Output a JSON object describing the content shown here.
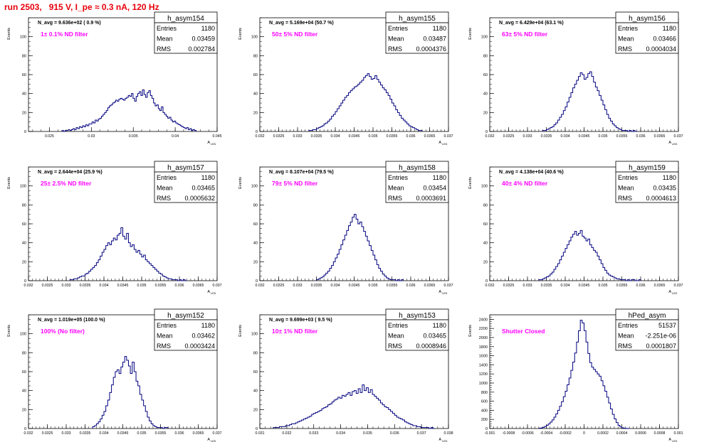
{
  "run_title": "run 2503,   915 V, I_pe ≈ 0.3 nA, 120 Hz",
  "colors": {
    "title": "#e8000b",
    "histogram": "#00007f",
    "annotation": "#ff00ff",
    "axes": "#000000"
  },
  "stat_labels": {
    "entries": "Entries",
    "mean": "Mean",
    "rms": "RMS"
  },
  "chart_data": [
    {
      "type": "histogram",
      "name": "h_asym154",
      "ylabel": "Events",
      "xlabel": "A",
      "xlabel_sub": "LED",
      "xlim": [
        0.0225,
        0.045
      ],
      "ylim": [
        0,
        120
      ],
      "yticks": [
        0,
        20,
        40,
        60,
        80,
        100
      ],
      "xticks": [
        0.025,
        0.03,
        0.035,
        0.04,
        0.045
      ],
      "xtick_labels": [
        "0.025",
        "0.03",
        "0.035",
        "0.04",
        "0.045"
      ],
      "navg": "N_avg = 9.636e+02 ( 0.9 %)",
      "annotation": "1± 0.1% ND filter",
      "entries": "1180",
      "mean": "0.03459",
      "rms": "0.002784",
      "bins_range": [
        0.0265,
        0.0425
      ],
      "counts": [
        1,
        0,
        1,
        1,
        2,
        1,
        2,
        3,
        2,
        4,
        3,
        5,
        4,
        6,
        5,
        7,
        6,
        8,
        8,
        10,
        9,
        12,
        11,
        13,
        14,
        16,
        18,
        20,
        22,
        25,
        27,
        28,
        30,
        31,
        33,
        32,
        34,
        35,
        34,
        33,
        35,
        36,
        38,
        37,
        40,
        35,
        32,
        37,
        40,
        42,
        38,
        44,
        39,
        36,
        41,
        43,
        38,
        35,
        30,
        27,
        28,
        24,
        22,
        26,
        20,
        18,
        16,
        14,
        15,
        12,
        10,
        11,
        9,
        8,
        7,
        6,
        5,
        4,
        3,
        4,
        2,
        3,
        1,
        2,
        1
      ]
    },
    {
      "type": "histogram",
      "name": "h_asym155",
      "ylabel": "Events",
      "xlabel": "A",
      "xlabel_sub": "LED",
      "xlim": [
        0.032,
        0.037
      ],
      "ylim": [
        0,
        120
      ],
      "yticks": [
        0,
        20,
        40,
        60,
        80,
        100
      ],
      "xticks": [
        0.032,
        0.0325,
        0.033,
        0.0335,
        0.034,
        0.0345,
        0.035,
        0.0355,
        0.036,
        0.0365,
        0.037
      ],
      "xtick_labels": [
        "0.032",
        "0.0325",
        "0.033",
        "0.0335",
        "0.034",
        "0.0345",
        "0.035",
        "0.0355",
        "0.036",
        "0.0365",
        "0.037"
      ],
      "navg": "N_avg = 5.169e+04 (50.7 %)",
      "annotation": "50± 5% ND filter",
      "entries": "1180",
      "mean": "0.03487",
      "rms": "0.0004376",
      "bins_range": [
        0.0333,
        0.0363
      ],
      "counts": [
        1,
        1,
        2,
        2,
        3,
        4,
        5,
        6,
        8,
        9,
        11,
        13,
        16,
        18,
        21,
        24,
        27,
        30,
        33,
        36,
        38,
        41,
        43,
        45,
        47,
        48,
        50,
        52,
        54,
        57,
        59,
        61,
        58,
        55,
        56,
        59,
        55,
        52,
        49,
        46,
        44,
        41,
        38,
        34,
        30,
        27,
        23,
        20,
        17,
        14,
        12,
        10,
        8,
        6,
        5,
        4,
        3,
        2,
        1,
        1
      ]
    },
    {
      "type": "histogram",
      "name": "h_asym156",
      "ylabel": "Events",
      "xlabel": "A",
      "xlabel_sub": "LED",
      "xlim": [
        0.032,
        0.037
      ],
      "ylim": [
        0,
        120
      ],
      "yticks": [
        0,
        20,
        40,
        60,
        80,
        100
      ],
      "xticks": [
        0.032,
        0.0325,
        0.033,
        0.0335,
        0.034,
        0.0345,
        0.035,
        0.0355,
        0.036,
        0.0365,
        0.037
      ],
      "xtick_labels": [
        "0.032",
        "0.0325",
        "0.033",
        "0.0335",
        "0.034",
        "0.0345",
        "0.035",
        "0.0355",
        "0.036",
        "0.0365",
        "0.037"
      ],
      "navg": "N_avg = 6.429e+04 (63.1 %)",
      "annotation": "63± 5% ND filter",
      "entries": "1180",
      "mean": "0.03466",
      "rms": "0.0004034",
      "bins_range": [
        0.0334,
        0.0359
      ],
      "counts": [
        1,
        1,
        2,
        3,
        4,
        5,
        7,
        9,
        12,
        15,
        18,
        22,
        26,
        31,
        36,
        41,
        46,
        50,
        54,
        58,
        62,
        60,
        55,
        57,
        61,
        63,
        58,
        52,
        47,
        43,
        38,
        33,
        28,
        23,
        18,
        14,
        11,
        8,
        6,
        4,
        3,
        2,
        1,
        1,
        1,
        0,
        1,
        0,
        1,
        0
      ]
    },
    {
      "type": "histogram",
      "name": "h_asym157",
      "ylabel": "Events",
      "xlabel": "A",
      "xlabel_sub": "LED",
      "xlim": [
        0.032,
        0.037
      ],
      "ylim": [
        0,
        120
      ],
      "yticks": [
        0,
        20,
        40,
        60,
        80,
        100
      ],
      "xticks": [
        0.032,
        0.0325,
        0.033,
        0.0335,
        0.034,
        0.0345,
        0.035,
        0.0355,
        0.036,
        0.0365,
        0.037
      ],
      "xtick_labels": [
        "0.032",
        "0.0325",
        "0.033",
        "0.0335",
        "0.034",
        "0.0345",
        "0.035",
        "0.0355",
        "0.036",
        "0.0365",
        "0.037"
      ],
      "navg": "N_avg = 2.644e+04 (25.9 %)",
      "annotation": "25± 2.5% ND filter",
      "entries": "1180",
      "mean": "0.03465",
      "rms": "0.0005632",
      "bins_range": [
        0.0331,
        0.0362
      ],
      "counts": [
        1,
        1,
        2,
        2,
        3,
        4,
        5,
        5,
        7,
        8,
        10,
        12,
        14,
        16,
        19,
        22,
        26,
        30,
        33,
        37,
        40,
        38,
        42,
        45,
        43,
        48,
        50,
        56,
        47,
        44,
        50,
        40,
        36,
        38,
        33,
        30,
        32,
        28,
        25,
        27,
        22,
        20,
        18,
        16,
        14,
        12,
        10,
        8,
        7,
        5,
        4,
        3,
        2,
        2,
        1,
        1,
        1,
        0,
        1,
        0,
        1,
        0
      ]
    },
    {
      "type": "histogram",
      "name": "h_asym158",
      "ylabel": "Events",
      "xlabel": "A",
      "xlabel_sub": "LED",
      "xlim": [
        0.032,
        0.037
      ],
      "ylim": [
        0,
        120
      ],
      "yticks": [
        0,
        20,
        40,
        60,
        80,
        100
      ],
      "xticks": [
        0.032,
        0.0325,
        0.033,
        0.0335,
        0.034,
        0.0345,
        0.035,
        0.0355,
        0.036,
        0.0365,
        0.037
      ],
      "xtick_labels": [
        "0.032",
        "0.0325",
        "0.033",
        "0.0335",
        "0.034",
        "0.0345",
        "0.035",
        "0.0355",
        "0.036",
        "0.0365",
        "0.037"
      ],
      "navg": "N_avg = 8.107e+04 (79.5 %)",
      "annotation": "79± 5% ND filter",
      "entries": "1180",
      "mean": "0.03454",
      "rms": "0.0003691",
      "bins_range": [
        0.0335,
        0.0358
      ],
      "counts": [
        1,
        2,
        3,
        4,
        6,
        8,
        10,
        13,
        16,
        20,
        24,
        28,
        33,
        38,
        43,
        48,
        53,
        58,
        62,
        67,
        70,
        65,
        60,
        62,
        57,
        52,
        47,
        42,
        37,
        32,
        27,
        22,
        17,
        13,
        10,
        7,
        5,
        3,
        2,
        1,
        1,
        1,
        0,
        1,
        0,
        1
      ]
    },
    {
      "type": "histogram",
      "name": "h_asym159",
      "ylabel": "Events",
      "xlabel": "A",
      "xlabel_sub": "LED",
      "xlim": [
        0.032,
        0.037
      ],
      "ylim": [
        0,
        120
      ],
      "yticks": [
        0,
        20,
        40,
        60,
        80,
        100
      ],
      "xticks": [
        0.032,
        0.0325,
        0.033,
        0.0335,
        0.034,
        0.0345,
        0.035,
        0.0355,
        0.036,
        0.0365,
        0.037
      ],
      "xtick_labels": [
        "0.032",
        "0.0325",
        "0.033",
        "0.0335",
        "0.034",
        "0.0345",
        "0.035",
        "0.0355",
        "0.036",
        "0.0365",
        "0.037"
      ],
      "navg": "N_avg = 4.138e+04 (40.6 %)",
      "annotation": "40± 4% ND filter",
      "entries": "1180",
      "mean": "0.03435",
      "rms": "0.0004613",
      "bins_range": [
        0.0333,
        0.036
      ],
      "counts": [
        1,
        1,
        2,
        3,
        4,
        5,
        7,
        9,
        12,
        15,
        18,
        22,
        26,
        30,
        34,
        38,
        42,
        46,
        49,
        52,
        48,
        50,
        53,
        47,
        45,
        42,
        44,
        38,
        35,
        32,
        30,
        26,
        22,
        18,
        14,
        11,
        8,
        6,
        5,
        4,
        3,
        2,
        2,
        1,
        1,
        1,
        0,
        1,
        0,
        1,
        1,
        0,
        0,
        1
      ]
    },
    {
      "type": "histogram",
      "name": "h_asym152",
      "ylabel": "Events",
      "xlabel": "A",
      "xlabel_sub": "LED",
      "xlim": [
        0.032,
        0.037
      ],
      "ylim": [
        0,
        120
      ],
      "yticks": [
        0,
        20,
        40,
        60,
        80,
        100
      ],
      "xticks": [
        0.032,
        0.0325,
        0.033,
        0.0335,
        0.034,
        0.0345,
        0.035,
        0.0355,
        0.036,
        0.0365,
        0.037
      ],
      "xtick_labels": [
        "0.032",
        "0.0325",
        "0.033",
        "0.0335",
        "0.034",
        "0.0345",
        "0.035",
        "0.0355",
        "0.036",
        "0.0365",
        "0.037"
      ],
      "navg": "N_avg = 1.019e+05 (100.0 %)",
      "annotation": "100% (No filter)",
      "entries": "1180",
      "mean": "0.03462",
      "rms": "0.0003424",
      "bins_range": [
        0.0337,
        0.0357
      ],
      "counts": [
        2,
        3,
        5,
        7,
        10,
        14,
        18,
        24,
        30,
        38,
        46,
        54,
        60,
        62,
        58,
        65,
        70,
        76,
        72,
        66,
        58,
        70,
        60,
        50,
        45,
        36,
        30,
        24,
        18,
        12,
        8,
        5,
        3,
        2,
        1,
        1,
        1,
        0,
        1,
        1
      ]
    },
    {
      "type": "histogram",
      "name": "h_asym153",
      "ylabel": "Events",
      "xlabel": "A",
      "xlabel_sub": "LED",
      "xlim": [
        0.031,
        0.038
      ],
      "ylim": [
        0,
        120
      ],
      "yticks": [
        0,
        20,
        40,
        60,
        80,
        100
      ],
      "xticks": [
        0.031,
        0.032,
        0.033,
        0.034,
        0.035,
        0.036,
        0.037,
        0.038
      ],
      "xtick_labels": [
        "0.031",
        "0.032",
        "0.033",
        "0.034",
        "0.035",
        "0.036",
        "0.037",
        "0.038"
      ],
      "navg": "N_avg = 9.699e+03 ( 9.5 %)",
      "annotation": "10± 1% ND filter",
      "entries": "1180",
      "mean": "0.03465",
      "rms": "0.0008946",
      "bins_range": [
        0.0315,
        0.0375
      ],
      "counts": [
        1,
        1,
        1,
        2,
        2,
        2,
        3,
        3,
        4,
        5,
        5,
        6,
        7,
        8,
        9,
        10,
        11,
        12,
        13,
        15,
        16,
        17,
        18,
        19,
        21,
        22,
        23,
        25,
        26,
        28,
        30,
        31,
        33,
        32,
        35,
        34,
        36,
        38,
        35,
        39,
        40,
        37,
        42,
        38,
        46,
        40,
        43,
        38,
        41,
        36,
        34,
        32,
        30,
        27,
        25,
        23,
        22,
        20,
        18,
        16,
        14,
        12,
        11,
        10,
        9,
        7,
        6,
        5,
        4,
        3,
        3,
        2,
        2,
        1,
        1,
        1,
        1,
        0,
        1,
        0
      ]
    },
    {
      "type": "histogram",
      "name": "hPed_asym",
      "ylabel": "Events",
      "xlabel": "A",
      "xlabel_sub": "LED",
      "xlim": [
        -0.001,
        0.001
      ],
      "ylim": [
        0,
        2500
      ],
      "yticks": [
        0,
        200,
        400,
        600,
        800,
        1000,
        1200,
        1400,
        1600,
        1800,
        2000,
        2200,
        2400
      ],
      "xticks": [
        -0.001,
        -0.0008,
        -0.0006,
        -0.0004,
        -0.0002,
        0,
        0.0002,
        0.0004,
        0.0006,
        0.0008,
        0.001
      ],
      "xtick_labels": [
        "-0.001",
        "-0.0008",
        "-0.0006",
        "-0.0004",
        "-0.0002",
        "0",
        "0.0002",
        "0.0004",
        "0.0006",
        "0.0008",
        "0.001"
      ],
      "navg": "",
      "annotation": "Shutter Closed",
      "entries": "51537",
      "mean": "-2.251e-06",
      "rms": "0.0001807",
      "bins_range": [
        -0.00048,
        0.00048
      ],
      "counts": [
        5,
        12,
        25,
        45,
        70,
        100,
        140,
        190,
        250,
        320,
        400,
        490,
        590,
        700,
        820,
        960,
        1110,
        1280,
        1460,
        1660,
        1900,
        2150,
        2380,
        2320,
        2150,
        1900,
        1650,
        1450,
        1350,
        1300,
        1250,
        1200,
        1150,
        1050,
        940,
        820,
        690,
        560,
        430,
        310,
        210,
        130,
        70,
        35,
        15,
        6,
        2,
        1
      ]
    }
  ]
}
